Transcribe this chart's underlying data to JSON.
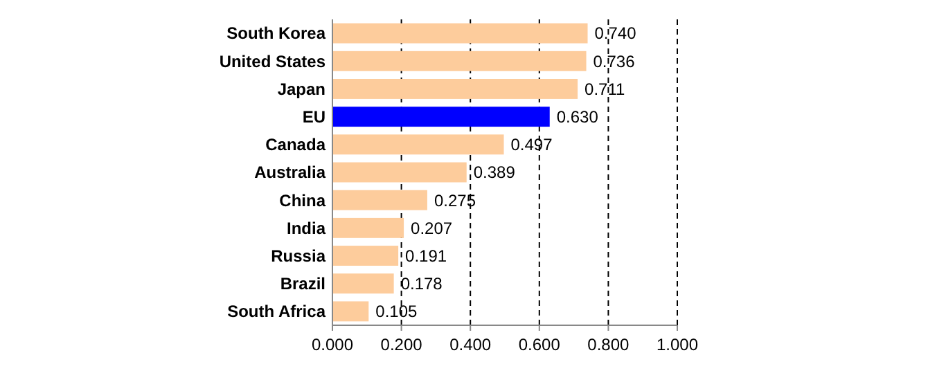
{
  "chart_data": {
    "type": "bar",
    "orientation": "horizontal",
    "categories": [
      "South Korea",
      "United States",
      "Japan",
      "EU",
      "Canada",
      "Australia",
      "China",
      "India",
      "Russia",
      "Brazil",
      "South Africa"
    ],
    "values": [
      0.74,
      0.736,
      0.711,
      0.63,
      0.497,
      0.389,
      0.275,
      0.207,
      0.191,
      0.178,
      0.105
    ],
    "value_labels": [
      "0.740",
      "0.736",
      "0.711",
      "0.630",
      "0.497",
      "0.389",
      "0.275",
      "0.207",
      "0.191",
      "0.178",
      "0.105"
    ],
    "colors": [
      "#fdcc9c",
      "#fdcc9c",
      "#fdcc9c",
      "#0000ff",
      "#fdcc9c",
      "#fdcc9c",
      "#fdcc9c",
      "#fdcc9c",
      "#fdcc9c",
      "#fdcc9c",
      "#fdcc9c"
    ],
    "xlim": [
      0,
      1
    ],
    "xticks": [
      {
        "value": 0,
        "label": "0.000"
      },
      {
        "value": 0.2,
        "label": "0.200"
      },
      {
        "value": 0.4,
        "label": "0.400"
      },
      {
        "value": 0.6,
        "label": "0.600"
      },
      {
        "value": 0.8,
        "label": "0.800"
      },
      {
        "value": 1,
        "label": "1.000"
      }
    ],
    "grid": "x"
  }
}
